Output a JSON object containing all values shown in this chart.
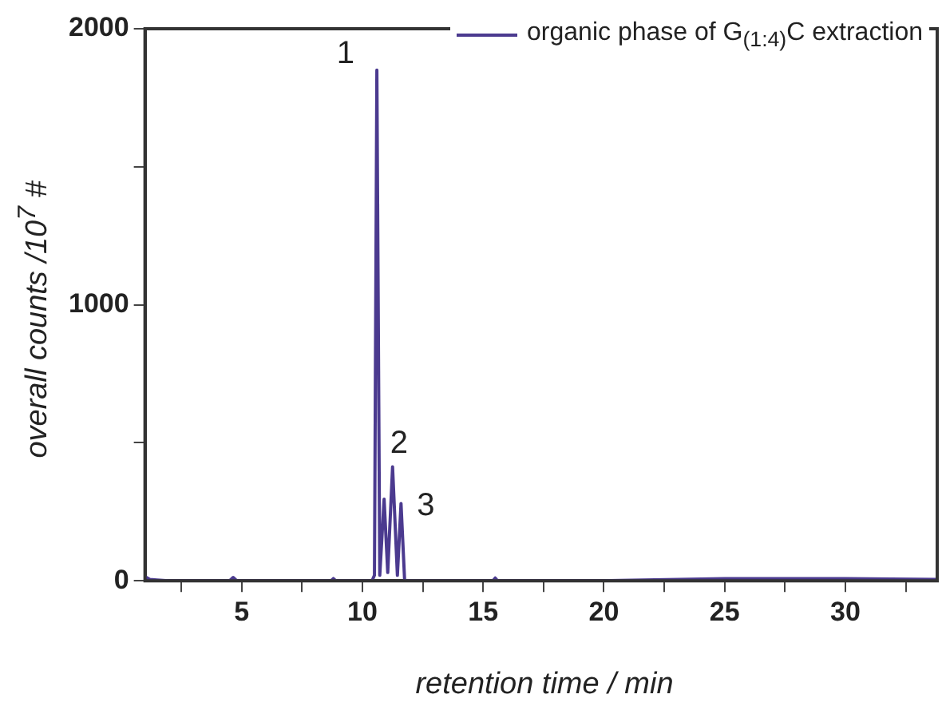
{
  "chart_data": {
    "type": "line",
    "xlabel": "retention time / min",
    "ylabel": "overall counts /10$^{7}$ #",
    "x": [
      1,
      1.2,
      1.5,
      2,
      4.5,
      4.65,
      4.8,
      8.7,
      8.8,
      8.9,
      10.4,
      10.5,
      10.6,
      10.72,
      10.9,
      11.05,
      11.25,
      11.45,
      11.6,
      11.75,
      12,
      15.4,
      15.5,
      15.6,
      20,
      25,
      30,
      33.8
    ],
    "series": [
      {
        "name": "organic phase of G$_{(1:4)}$C extraction",
        "color": "#4b3a8f",
        "values": [
          15,
          5,
          3,
          0,
          0,
          12,
          0,
          0,
          8,
          0,
          0,
          20,
          1850,
          20,
          296,
          30,
          413,
          20,
          280,
          0,
          0,
          0,
          10,
          0,
          0,
          8,
          8,
          5
        ]
      }
    ],
    "xlim": [
      1,
      33.8
    ],
    "ylim": [
      0,
      2000
    ],
    "xticks": [
      {
        "value": 2.5,
        "label": null
      },
      5,
      {
        "value": 7.5,
        "label": null
      },
      10,
      {
        "value": 12.5,
        "label": null
      },
      15,
      {
        "value": 17.5,
        "label": null
      },
      20,
      {
        "value": 22.5,
        "label": null
      },
      25,
      {
        "value": 27.5,
        "label": null
      },
      30,
      {
        "value": 32.5,
        "label": null
      }
    ],
    "yticks": [
      0,
      {
        "value": 500,
        "label": null
      },
      1000,
      {
        "value": 1500,
        "label": null
      },
      2000
    ],
    "grid": false,
    "legend": "top right",
    "marker": "none",
    "line_style": "solid",
    "annotations": [
      {
        "text": "1",
        "x": 10.6,
        "y": 1850
      },
      {
        "text": "2",
        "x": 11.25,
        "y": 413
      },
      {
        "text": "3",
        "x": 11.6,
        "y": 280
      }
    ]
  }
}
